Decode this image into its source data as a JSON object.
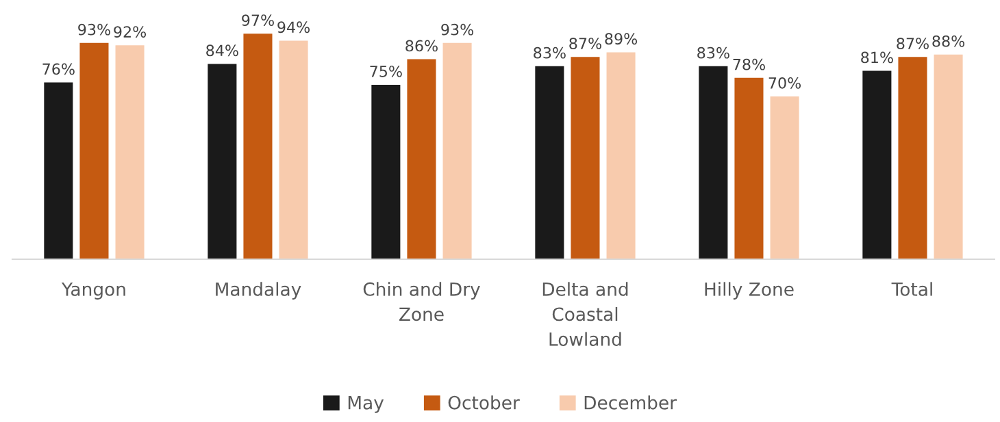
{
  "chart_data": {
    "type": "bar",
    "categories": [
      "Yangon",
      "Mandalay",
      "Chin and Dry Zone",
      "Delta and Coastal Lowland",
      "Hilly Zone",
      "Total"
    ],
    "series": [
      {
        "name": "May",
        "color": "#1a1a1a",
        "values": [
          76,
          84,
          75,
          83,
          83,
          81
        ],
        "value_labels": [
          "76%",
          "84%",
          "75%",
          "83%",
          "83%",
          "81%"
        ]
      },
      {
        "name": "October",
        "color": "#c55a11",
        "values": [
          93,
          97,
          86,
          87,
          78,
          87
        ],
        "value_labels": [
          "93%",
          "97%",
          "86%",
          "87%",
          "78%",
          "87%"
        ]
      },
      {
        "name": "December",
        "color": "#f8cbad",
        "values": [
          92,
          94,
          93,
          89,
          70,
          88
        ],
        "value_labels": [
          "92%",
          "94%",
          "93%",
          "89%",
          "70%",
          "88%"
        ]
      }
    ],
    "grid": false,
    "legend": "bottom"
  }
}
